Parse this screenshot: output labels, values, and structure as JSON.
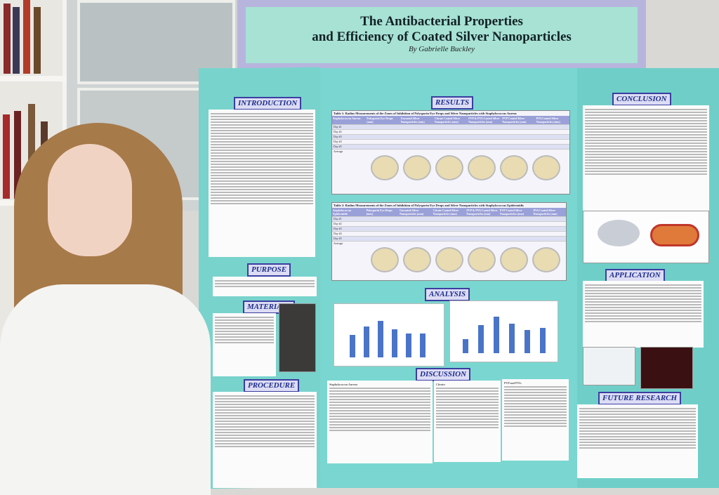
{
  "poster": {
    "title_line1": "The Antibacterial Properties",
    "title_line2": "and Efficiency of Coated Silver Nanoparticles",
    "author": "By Gabrielle Buckley",
    "sections": {
      "introduction": "INTRODUCTION",
      "purpose": "PURPOSE",
      "materials": "MATERIALS",
      "procedure": "PROCEDURE",
      "results": "RESULTS",
      "analysis": "ANALYSIS",
      "discussion": "DISCUSSION",
      "conclusion": "CONCLUSION",
      "application": "APPLICATION",
      "future_research": "FUTURE RESEARCH"
    },
    "table1_title": "Table 1: Radius Measurements of the Zones of Inhibition of Polysporin Eye Drops and Silver Nanoparticles with Staphylococcus Aureus",
    "table2_title": "Table 2: Radius Measurements of the Zones of Inhibition of Polysporin Eye Drops and Silver Nanoparticles with Staphylococcus Epidermidis",
    "table1_headers": [
      "Staphylococcus Aureus",
      "Polysporin Eye Drops (mm)",
      "Uncoated Silver Nanoparticles (mm)",
      "Citrate Coated Silver Nanoparticles (mm)",
      "PVP & PVA Coated Silver Nanoparticles (mm)",
      "PVP Coated Silver Nanoparticles (mm)",
      "PVA Coated Silver Nanoparticles (mm)"
    ],
    "table2_headers": [
      "Staphylococcus Epidermidis",
      "Polysporin Eye Drops (mm)",
      "Uncoated Silver Nanoparticles (mm)",
      "Citrate Coated Silver Nanoparticles (mm)",
      "PVP & PVA Coated Silver Nanoparticles (mm)",
      "PVP Coated Silver Nanoparticles (mm)",
      "PVA Coated Silver Nanoparticles (mm)"
    ],
    "row_labels": [
      "Day #1",
      "Day #2",
      "Day #3",
      "Day #4",
      "Day #5",
      "Average"
    ],
    "discussion_leads": [
      "Staphylococcus Aureus:",
      "Citrate:",
      "PVP and PVA:"
    ]
  },
  "colors": {
    "board": "#7ad6d0",
    "header_border": "#3b3ea0",
    "title_bg": "#a7e2d4",
    "title_frame": "#b7b5dd",
    "bars": "#4a74c8"
  }
}
